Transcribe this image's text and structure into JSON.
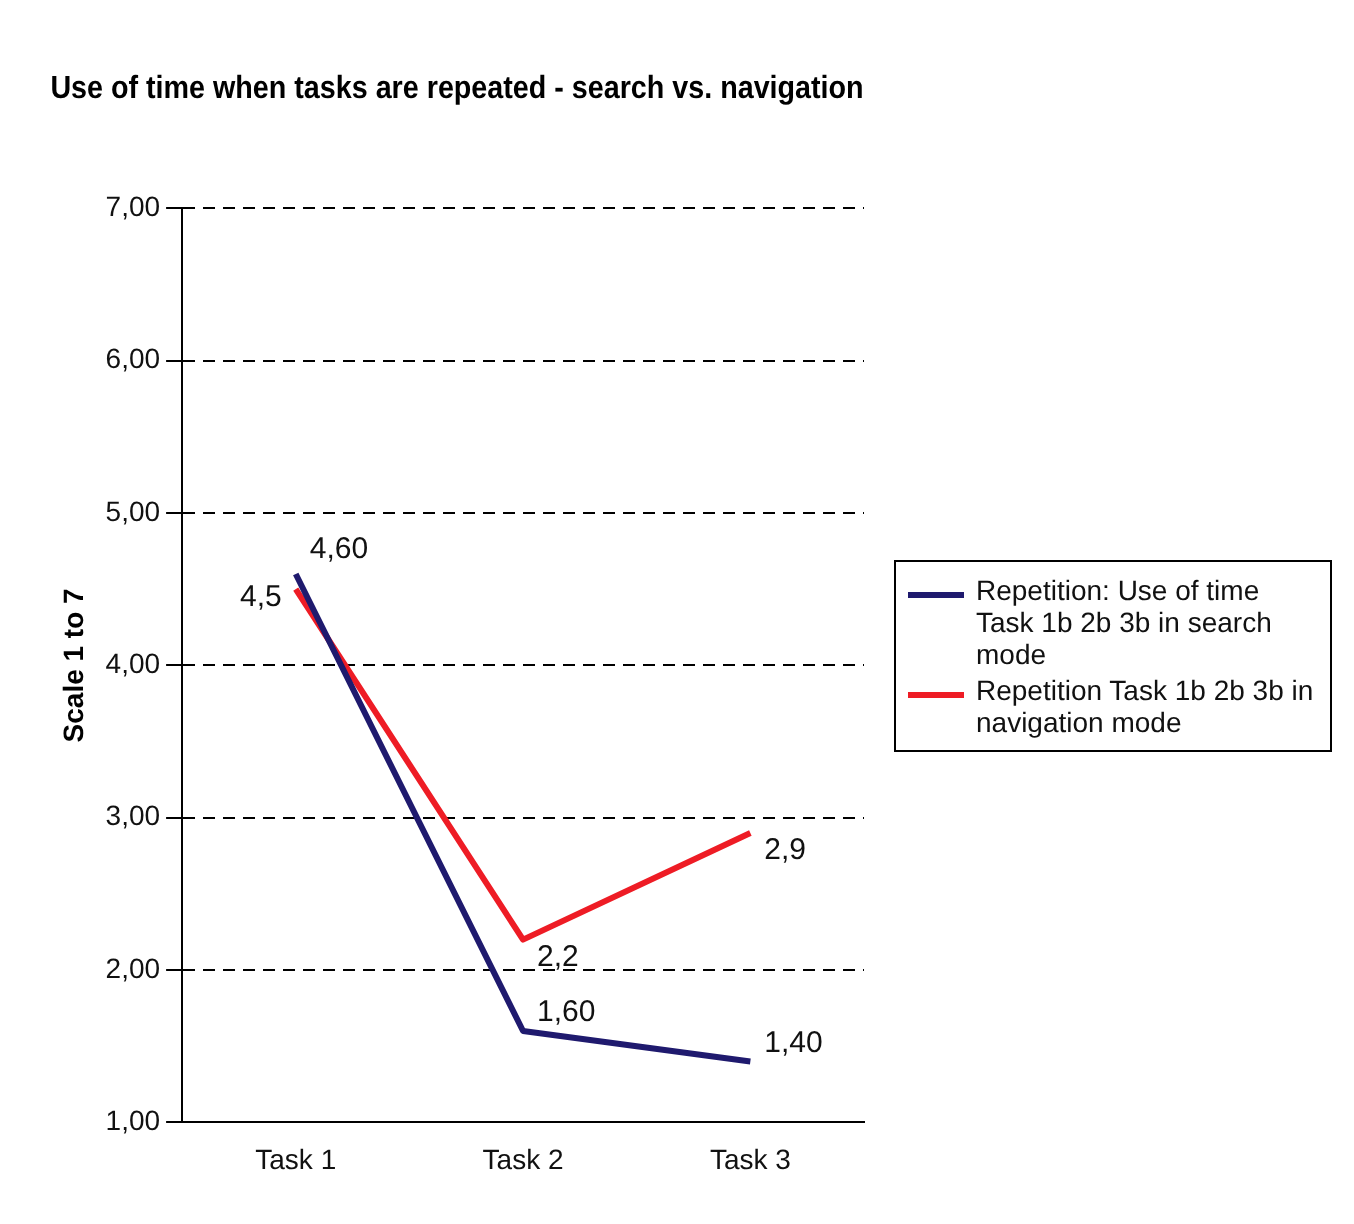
{
  "chart_data": {
    "type": "line",
    "title": "Use of time when tasks are repeated - search vs. navigation",
    "ylabel": "Scale 1 to 7",
    "categories": [
      "Task 1",
      "Task 2",
      "Task 3"
    ],
    "series": [
      {
        "name": "Repetition: Use of time Task 1b 2b 3b in search mode",
        "color": "#1f1a6e",
        "values": [
          4.6,
          1.6,
          1.4
        ],
        "value_labels": [
          "4,60",
          "1,60",
          "1,40"
        ]
      },
      {
        "name": "Repetition Task 1b 2b 3b in navigation mode",
        "color": "#ee1c25",
        "values": [
          4.5,
          2.2,
          2.9
        ],
        "value_labels": [
          "4,5",
          "2,2",
          "2,9"
        ]
      }
    ],
    "ylim": [
      1,
      7
    ],
    "yticks": [
      {
        "value": 1,
        "label": "1,00"
      },
      {
        "value": 2,
        "label": "2,00"
      },
      {
        "value": 3,
        "label": "3,00"
      },
      {
        "value": 4,
        "label": "4,00"
      },
      {
        "value": 5,
        "label": "5,00"
      },
      {
        "value": 6,
        "label": "6,00"
      },
      {
        "value": 7,
        "label": "7,00"
      }
    ],
    "grid": "y",
    "legend": "right",
    "marker": "none",
    "line_style": "solid"
  }
}
